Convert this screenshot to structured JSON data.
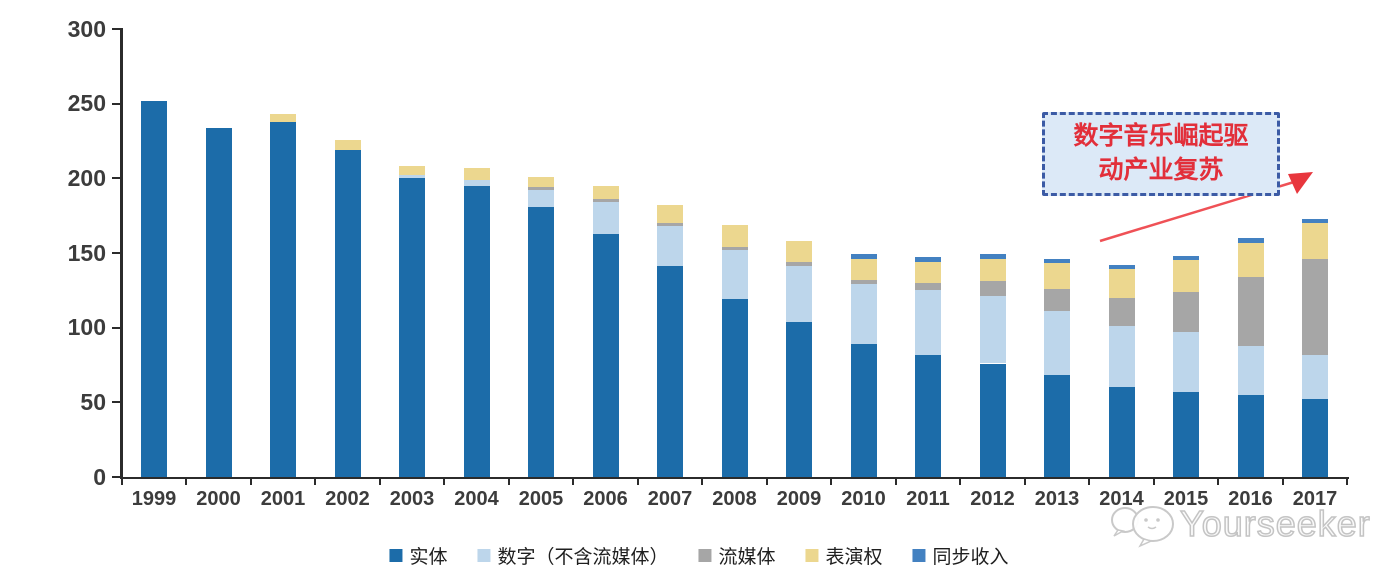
{
  "watermark": {
    "brand": "Yourseeker"
  },
  "annotation": {
    "line1": "数字音乐崛起驱",
    "line2": "动产业复苏"
  },
  "colors": {
    "physical_blue": "#1c6ca9",
    "digital_light_blue": "#bdd6eb",
    "streaming_gray": "#a6a6a6",
    "performance_yellow": "#ecd78f",
    "sync_blue": "#4381c1",
    "annotation_red": "#e22f3a",
    "arrow_red": "#ef5156",
    "callout_fill": "#dce9f7",
    "callout_border": "#3c5ba5",
    "axis_black": "#2b2b2b"
  },
  "chart_data": {
    "type": "bar",
    "stacked": true,
    "title": "",
    "xlabel": "",
    "ylabel": "",
    "grid": false,
    "legend_position": "bottom",
    "ylim": [
      0,
      300
    ],
    "yticks": [
      0,
      50,
      100,
      150,
      200,
      250,
      300
    ],
    "categories": [
      "1999",
      "2000",
      "2001",
      "2002",
      "2003",
      "2004",
      "2005",
      "2006",
      "2007",
      "2008",
      "2009",
      "2010",
      "2011",
      "2012",
      "2013",
      "2014",
      "2015",
      "2016",
      "2017"
    ],
    "series": [
      {
        "name": "实体",
        "color": "#1c6ca9",
        "values": [
          252,
          234,
          238,
          219,
          200,
          195,
          181,
          163,
          141,
          119,
          104,
          89,
          82,
          76,
          68,
          60,
          57,
          55,
          52
        ]
      },
      {
        "name": "数字（不含流媒体）",
        "color": "#bdd6eb",
        "values": [
          0,
          0,
          0,
          0,
          2,
          4,
          11,
          21,
          27,
          33,
          37,
          40,
          43,
          45,
          43,
          41,
          40,
          33,
          30
        ]
      },
      {
        "name": "流媒体",
        "color": "#a6a6a6",
        "values": [
          0,
          0,
          0,
          0,
          0,
          0,
          2,
          2,
          2,
          2,
          3,
          3,
          5,
          10,
          15,
          19,
          27,
          46,
          64
        ]
      },
      {
        "name": "表演权",
        "color": "#ecd78f",
        "values": [
          0,
          0,
          5,
          7,
          6,
          8,
          7,
          9,
          12,
          15,
          14,
          14,
          14,
          15,
          17,
          19,
          21,
          23,
          24
        ]
      },
      {
        "name": "同步收入",
        "color": "#4381c1",
        "values": [
          0,
          0,
          0,
          0,
          0,
          0,
          0,
          0,
          0,
          0,
          0,
          3,
          3,
          3,
          3,
          3,
          3,
          3,
          3
        ]
      }
    ],
    "annotation_text": "数字音乐崛起驱动产业复苏"
  }
}
